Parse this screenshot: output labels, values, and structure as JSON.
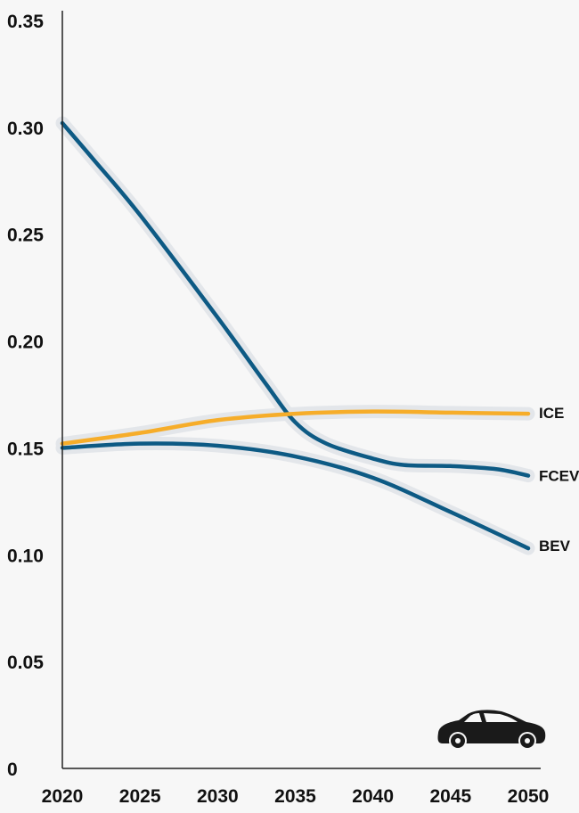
{
  "chart_data": {
    "type": "line",
    "title": "",
    "xlabel": "",
    "ylabel": "",
    "xlim": [
      2020,
      2050
    ],
    "ylim": [
      0,
      0.35
    ],
    "grid": false,
    "x_ticks": [
      2020,
      2025,
      2030,
      2035,
      2040,
      2045,
      2050
    ],
    "x_tick_labels": [
      "2020",
      "2025",
      "2030",
      "2035",
      "2040",
      "2045",
      "2050"
    ],
    "y_ticks": [
      0,
      0.05,
      0.1,
      0.15,
      0.2,
      0.25,
      0.3,
      0.35
    ],
    "y_tick_labels": [
      "0",
      "0.05",
      "0.10",
      "0.15",
      "0.20",
      "0.25",
      "0.30",
      "0.35"
    ],
    "legend": "direct labels at line ends",
    "colors": {
      "background": "#f7f7f7",
      "band": "#e3e6ea",
      "axis": "#222222",
      "blue": "#0d5a84",
      "orange": "#f6ad2a",
      "icon": "#1a1a1a"
    },
    "series": [
      {
        "name": "ICE",
        "color": "#f6ad2a",
        "x": [
          2020,
          2025,
          2030,
          2035,
          2040,
          2045,
          2050
        ],
        "y": [
          0.152,
          0.157,
          0.163,
          0.166,
          0.167,
          0.1665,
          0.166
        ]
      },
      {
        "name": "FCEV",
        "color": "#0d5a84",
        "x": [
          2020,
          2022,
          2025,
          2030,
          2033,
          2035,
          2037,
          2040,
          2042,
          2045,
          2048,
          2050
        ],
        "y": [
          0.302,
          0.285,
          0.259,
          0.211,
          0.181,
          0.162,
          0.152,
          0.145,
          0.142,
          0.1415,
          0.14,
          0.137
        ]
      },
      {
        "name": "BEV",
        "color": "#0d5a84",
        "x": [
          2020,
          2025,
          2030,
          2035,
          2040,
          2045,
          2050
        ],
        "y": [
          0.15,
          0.152,
          0.151,
          0.146,
          0.136,
          0.12,
          0.103
        ]
      }
    ],
    "icon": "car-icon"
  }
}
